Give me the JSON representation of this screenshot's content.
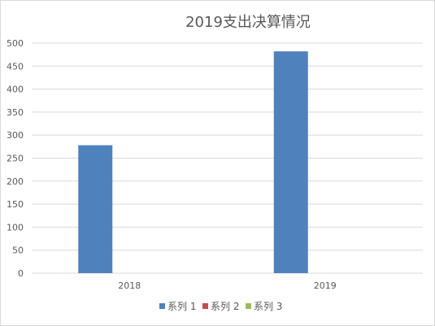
{
  "chart_data": {
    "type": "bar",
    "title": "2019支出决算情况",
    "categories": [
      "2018",
      "2019"
    ],
    "series": [
      {
        "name": "系列 1",
        "values": [
          278,
          482
        ],
        "color": "#4F81BD"
      },
      {
        "name": "系列 2",
        "values": [
          0,
          0
        ],
        "color": "#C0504D"
      },
      {
        "name": "系列 3",
        "values": [
          0,
          0
        ],
        "color": "#9BBB59"
      }
    ],
    "ylim": [
      0,
      500
    ],
    "yticks": [
      "0",
      "50",
      "100",
      "150",
      "200",
      "250",
      "300",
      "350",
      "400",
      "450",
      "500"
    ],
    "grid": true,
    "legend_position": "bottom"
  }
}
